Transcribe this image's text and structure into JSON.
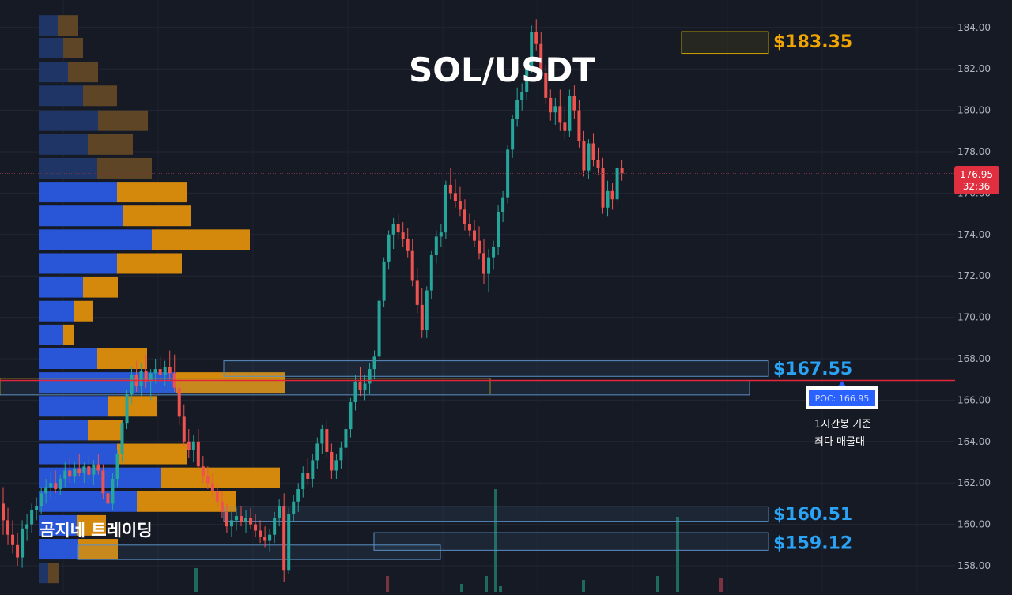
{
  "chart_data": {
    "type": "candlestick",
    "title": "SOL/USDT",
    "watermark": "곰지네 트레이딩",
    "y_ticks": [
      "158.00",
      "160.00",
      "162.00",
      "164.00",
      "166.00",
      "168.00",
      "170.00",
      "172.00",
      "174.00",
      "176.00",
      "178.00",
      "180.00",
      "182.00",
      "184.00"
    ],
    "ylim": [
      157.35,
      185.75
    ],
    "grid": true,
    "current_price": {
      "value": "176.95",
      "countdown": "32:36",
      "price": 176.95
    },
    "poc": {
      "label": "POC: 166.95",
      "price": 166.95
    },
    "annotation_lines": [
      "1시간봉 기준",
      "최다 매물대"
    ],
    "level_labels": [
      {
        "text": "$183.35",
        "price": 183.35,
        "color": "#f0a500"
      },
      {
        "text": "$167.55",
        "price": 167.55,
        "color": "#2aa3f5"
      },
      {
        "text": "$160.51",
        "price": 160.51,
        "color": "#2aa3f5"
      },
      {
        "text": "$159.12",
        "price": 159.12,
        "color": "#2aa3f5"
      }
    ],
    "zones": [
      {
        "p1": 183.8,
        "p2": 182.75,
        "color": "#c8a000"
      },
      {
        "p1": 167.9,
        "p2": 167.15,
        "color": "#5a8fc4"
      },
      {
        "p1": 166.95,
        "p2": 166.25,
        "color": "#5a8fc4"
      },
      {
        "p1": 160.85,
        "p2": 160.15,
        "color": "#5a8fc4"
      },
      {
        "p1": 159.6,
        "p2": 158.75,
        "color": "#5a8fc4"
      },
      {
        "p1": 159.0,
        "p2": 158.3,
        "color": "#5a8fc4"
      }
    ],
    "volume_profile": [
      {
        "price": 184.1,
        "buy": 24,
        "sell": 26
      },
      {
        "price": 183.0,
        "buy": 31,
        "sell": 25
      },
      {
        "price": 181.85,
        "buy": 37,
        "sell": 38
      },
      {
        "price": 180.7,
        "buy": 56,
        "sell": 43
      },
      {
        "price": 179.5,
        "buy": 75,
        "sell": 63
      },
      {
        "price": 178.35,
        "buy": 62,
        "sell": 57
      },
      {
        "price": 177.2,
        "buy": 74,
        "sell": 69
      },
      {
        "price": 176.05,
        "buy": 99,
        "sell": 88
      },
      {
        "price": 174.9,
        "buy": 106,
        "sell": 87
      },
      {
        "price": 173.75,
        "buy": 143,
        "sell": 124
      },
      {
        "price": 172.6,
        "buy": 99,
        "sell": 82
      },
      {
        "price": 171.45,
        "buy": 56,
        "sell": 44
      },
      {
        "price": 170.3,
        "buy": 44,
        "sell": 25
      },
      {
        "price": 169.15,
        "buy": 31,
        "sell": 13
      },
      {
        "price": 168.0,
        "buy": 74,
        "sell": 63
      },
      {
        "price": 166.85,
        "buy": 173,
        "sell": 138
      },
      {
        "price": 165.7,
        "buy": 87,
        "sell": 63
      },
      {
        "price": 164.55,
        "buy": 62,
        "sell": 44
      },
      {
        "price": 163.4,
        "buy": 99,
        "sell": 88
      },
      {
        "price": 162.25,
        "buy": 155,
        "sell": 150
      },
      {
        "price": 161.1,
        "buy": 124,
        "sell": 125
      },
      {
        "price": 159.95,
        "buy": 48,
        "sell": 37
      },
      {
        "price": 158.8,
        "buy": 50,
        "sell": 50
      },
      {
        "price": 157.65,
        "buy": 12,
        "sell": 13
      }
    ],
    "candles": [
      [
        161.0,
        161.8,
        159.5,
        160.2
      ],
      [
        160.2,
        160.8,
        159.0,
        159.5
      ],
      [
        159.5,
        160.2,
        158.6,
        159.0
      ],
      [
        159.0,
        159.6,
        158.0,
        158.4
      ],
      [
        158.4,
        160.2,
        157.9,
        159.8
      ],
      [
        159.8,
        160.5,
        159.2,
        160.0
      ],
      [
        160.0,
        161.0,
        159.6,
        160.7
      ],
      [
        160.7,
        161.3,
        160.2,
        160.9
      ],
      [
        160.9,
        161.8,
        160.5,
        161.5
      ],
      [
        161.5,
        162.2,
        161.0,
        161.8
      ],
      [
        161.8,
        162.5,
        161.3,
        162.0
      ],
      [
        162.0,
        162.6,
        161.5,
        161.7
      ],
      [
        161.7,
        162.4,
        161.4,
        162.2
      ],
      [
        162.2,
        163.0,
        161.8,
        162.6
      ],
      [
        162.6,
        163.2,
        162.0,
        162.3
      ],
      [
        162.3,
        163.0,
        162.0,
        162.7
      ],
      [
        162.7,
        163.4,
        162.3,
        162.5
      ],
      [
        162.5,
        163.0,
        162.0,
        162.8
      ],
      [
        162.8,
        163.3,
        162.2,
        162.4
      ],
      [
        162.4,
        163.1,
        161.9,
        162.9
      ],
      [
        162.9,
        163.4,
        162.4,
        162.6
      ],
      [
        162.6,
        162.9,
        161.2,
        161.5
      ],
      [
        161.5,
        162.0,
        160.8,
        161.0
      ],
      [
        161.0,
        162.5,
        160.7,
        162.2
      ],
      [
        162.2,
        163.6,
        161.8,
        163.4
      ],
      [
        163.4,
        165.0,
        163.0,
        164.9
      ],
      [
        164.9,
        166.5,
        164.6,
        166.3
      ],
      [
        166.3,
        167.6,
        165.8,
        167.2
      ],
      [
        167.2,
        167.9,
        166.4,
        166.7
      ],
      [
        166.7,
        167.8,
        166.2,
        167.4
      ],
      [
        167.4,
        168.2,
        166.6,
        166.9
      ],
      [
        166.9,
        167.5,
        166.0,
        167.3
      ],
      [
        167.3,
        168.0,
        166.8,
        167.5
      ],
      [
        167.5,
        168.1,
        166.9,
        167.2
      ],
      [
        167.2,
        167.9,
        166.7,
        167.6
      ],
      [
        167.6,
        168.4,
        167.0,
        167.3
      ],
      [
        167.3,
        168.2,
        166.4,
        166.6
      ],
      [
        166.6,
        167.0,
        164.8,
        165.2
      ],
      [
        165.2,
        165.8,
        163.8,
        164.0
      ],
      [
        164.0,
        164.6,
        163.2,
        163.6
      ],
      [
        163.6,
        164.3,
        163.0,
        164.0
      ],
      [
        164.0,
        164.6,
        162.6,
        162.8
      ],
      [
        162.8,
        163.3,
        162.0,
        162.3
      ],
      [
        162.3,
        162.8,
        161.7,
        162.0
      ],
      [
        162.0,
        162.5,
        161.3,
        161.6
      ],
      [
        161.6,
        162.0,
        160.8,
        161.1
      ],
      [
        161.1,
        161.6,
        160.3,
        160.6
      ],
      [
        160.6,
        161.0,
        159.6,
        159.9
      ],
      [
        159.9,
        160.6,
        159.4,
        160.2
      ],
      [
        160.2,
        160.8,
        159.7,
        160.4
      ],
      [
        160.4,
        160.9,
        159.9,
        160.1
      ],
      [
        160.1,
        160.7,
        159.6,
        160.3
      ],
      [
        160.3,
        160.8,
        159.8,
        160.0
      ],
      [
        160.0,
        160.5,
        159.4,
        159.7
      ],
      [
        159.7,
        160.2,
        159.1,
        159.4
      ],
      [
        159.4,
        159.9,
        158.9,
        159.2
      ],
      [
        159.2,
        159.8,
        158.7,
        159.5
      ],
      [
        159.5,
        160.6,
        159.1,
        160.3
      ],
      [
        160.3,
        161.2,
        159.9,
        160.9
      ],
      [
        160.9,
        161.5,
        157.2,
        157.8
      ],
      [
        157.8,
        160.8,
        157.6,
        160.5
      ],
      [
        160.5,
        161.4,
        160.1,
        161.1
      ],
      [
        161.1,
        162.0,
        160.6,
        161.7
      ],
      [
        161.7,
        162.8,
        161.3,
        162.5
      ],
      [
        162.5,
        163.2,
        161.9,
        162.2
      ],
      [
        162.2,
        163.4,
        161.8,
        163.1
      ],
      [
        163.1,
        164.2,
        162.7,
        163.9
      ],
      [
        163.9,
        164.8,
        163.4,
        164.6
      ],
      [
        164.6,
        165.0,
        163.2,
        163.5
      ],
      [
        163.5,
        163.9,
        162.2,
        162.6
      ],
      [
        162.6,
        163.4,
        162.2,
        163.1
      ],
      [
        163.1,
        164.0,
        162.7,
        163.7
      ],
      [
        163.7,
        164.9,
        163.3,
        164.6
      ],
      [
        164.6,
        166.1,
        164.2,
        165.9
      ],
      [
        165.9,
        167.2,
        165.5,
        166.9
      ],
      [
        166.9,
        167.6,
        166.2,
        166.5
      ],
      [
        166.5,
        167.2,
        166.0,
        166.8
      ],
      [
        166.8,
        167.8,
        166.3,
        167.5
      ],
      [
        167.5,
        168.4,
        167.0,
        168.1
      ],
      [
        168.1,
        171.0,
        167.8,
        170.8
      ],
      [
        170.8,
        172.9,
        170.5,
        172.7
      ],
      [
        172.7,
        174.2,
        172.3,
        174.0
      ],
      [
        174.0,
        174.8,
        173.3,
        174.5
      ],
      [
        174.5,
        175.0,
        173.8,
        174.1
      ],
      [
        174.1,
        174.6,
        173.4,
        173.8
      ],
      [
        173.8,
        174.3,
        172.9,
        173.2
      ],
      [
        173.2,
        173.8,
        171.5,
        171.8
      ],
      [
        171.8,
        172.4,
        170.2,
        170.6
      ],
      [
        170.6,
        171.4,
        169.0,
        169.4
      ],
      [
        169.4,
        171.5,
        169.0,
        171.3
      ],
      [
        171.3,
        173.2,
        170.9,
        173.0
      ],
      [
        173.0,
        174.2,
        172.6,
        173.9
      ],
      [
        173.9,
        174.5,
        173.4,
        174.1
      ],
      [
        174.1,
        176.6,
        173.8,
        176.4
      ],
      [
        176.4,
        177.2,
        175.7,
        176.0
      ],
      [
        176.0,
        176.7,
        175.3,
        175.6
      ],
      [
        175.6,
        176.3,
        174.9,
        175.2
      ],
      [
        175.2,
        175.7,
        174.2,
        174.5
      ],
      [
        174.5,
        175.0,
        173.9,
        174.2
      ],
      [
        174.2,
        174.7,
        173.4,
        173.7
      ],
      [
        173.7,
        174.4,
        172.8,
        173.1
      ],
      [
        173.1,
        173.8,
        171.6,
        172.1
      ],
      [
        172.1,
        173.3,
        171.2,
        172.9
      ],
      [
        172.9,
        173.7,
        172.3,
        173.4
      ],
      [
        173.4,
        175.4,
        173.0,
        175.1
      ],
      [
        175.1,
        176.1,
        174.6,
        175.8
      ],
      [
        175.8,
        178.3,
        175.5,
        178.1
      ],
      [
        178.1,
        179.8,
        177.7,
        179.6
      ],
      [
        179.6,
        181.1,
        179.2,
        180.5
      ],
      [
        180.5,
        181.3,
        180.0,
        180.9
      ],
      [
        180.9,
        182.4,
        180.5,
        182.1
      ],
      [
        182.1,
        184.1,
        181.8,
        183.8
      ],
      [
        183.8,
        184.4,
        182.9,
        183.2
      ],
      [
        183.2,
        183.8,
        181.5,
        181.8
      ],
      [
        181.8,
        182.2,
        180.3,
        180.6
      ],
      [
        180.6,
        181.0,
        179.5,
        179.9
      ],
      [
        179.9,
        180.6,
        179.3,
        180.2
      ],
      [
        180.2,
        181.0,
        179.0,
        179.4
      ],
      [
        179.4,
        180.2,
        178.6,
        179.0
      ],
      [
        179.0,
        181.0,
        178.7,
        180.7
      ],
      [
        180.7,
        181.2,
        179.6,
        180.0
      ],
      [
        180.0,
        180.5,
        178.2,
        178.5
      ],
      [
        178.5,
        179.0,
        176.8,
        177.1
      ],
      [
        177.1,
        178.6,
        176.7,
        178.4
      ],
      [
        178.4,
        178.9,
        177.3,
        177.6
      ],
      [
        177.6,
        178.2,
        176.9,
        177.2
      ],
      [
        177.2,
        177.7,
        175.0,
        175.3
      ],
      [
        175.3,
        176.6,
        174.9,
        176.1
      ],
      [
        176.1,
        176.5,
        175.2,
        175.7
      ],
      [
        175.7,
        177.5,
        175.4,
        177.2
      ],
      [
        177.2,
        177.6,
        176.6,
        176.95
      ]
    ]
  }
}
